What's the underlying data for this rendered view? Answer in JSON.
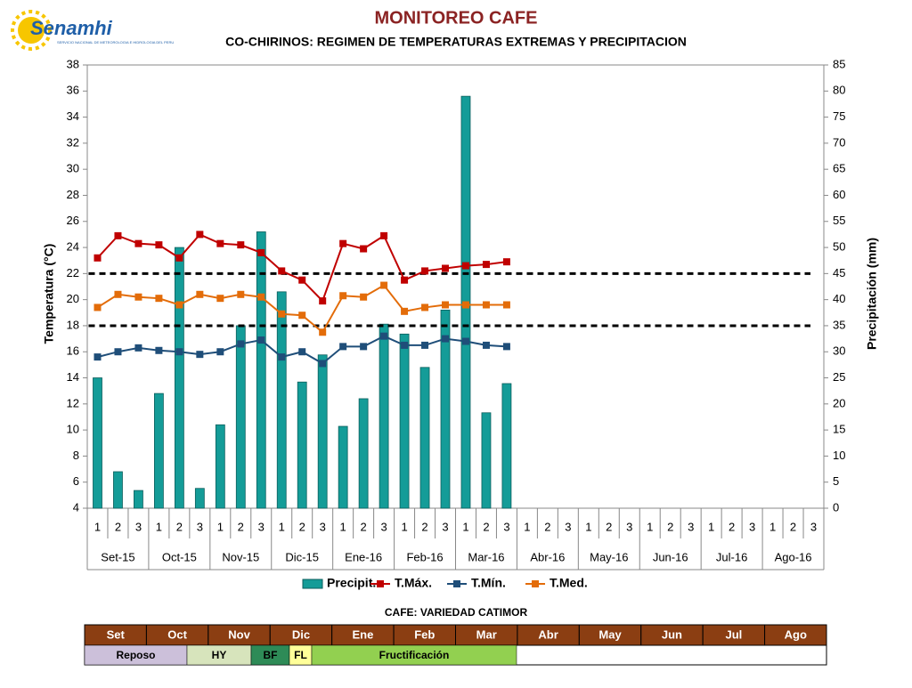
{
  "header": {
    "logo": "Senamhi",
    "logo_subtitle": "SERVICIO NACIONAL DE METEOROLOGIA E HIDROLOGIA DEL PERU"
  },
  "chart_data": {
    "type": "combo",
    "title": "MONITOREO CAFE",
    "subtitle": "CO-CHIRINOS: REGIMEN DE TEMPERATURAS EXTREMAS Y PRECIPITACION",
    "ylabel": "Temperatura (°C)",
    "y2label": "Precipitación (mm)",
    "categories": [
      "1",
      "2",
      "3",
      "1",
      "2",
      "3",
      "1",
      "2",
      "3",
      "1",
      "2",
      "3",
      "1",
      "2",
      "3",
      "1",
      "2",
      "3",
      "1",
      "2",
      "3",
      "1",
      "2",
      "3",
      "1",
      "2",
      "3",
      "1",
      "2",
      "3",
      "1",
      "2",
      "3",
      "1",
      "2",
      "3"
    ],
    "groups": [
      "Set-15",
      "Oct-15",
      "Nov-15",
      "Dic-15",
      "Ene-16",
      "Feb-16",
      "Mar-16",
      "Abr-16",
      "May-16",
      "Jun-16",
      "Jul-16",
      "Ago-16"
    ],
    "ylim": [
      4,
      38
    ],
    "yticks": [
      4,
      6,
      8,
      10,
      12,
      14,
      16,
      18,
      20,
      22,
      24,
      26,
      28,
      30,
      32,
      34,
      36,
      38
    ],
    "y2lim": [
      0,
      85
    ],
    "y2ticks": [
      0,
      5,
      10,
      15,
      20,
      25,
      30,
      35,
      40,
      45,
      50,
      55,
      60,
      65,
      70,
      75,
      80,
      85
    ],
    "reference_lines": [
      22,
      18
    ],
    "series": [
      {
        "name": "Precipit.",
        "kind": "bar",
        "axis": "y2",
        "color": "#149c98",
        "values": [
          25,
          7,
          3.4,
          22,
          50,
          3.8,
          16,
          35,
          53,
          41.5,
          24.2,
          29.4,
          15.7,
          21,
          35.3,
          33.4,
          27,
          38,
          79,
          18.3,
          23.9,
          null,
          null,
          null,
          null,
          null,
          null,
          null,
          null,
          null,
          null,
          null,
          null,
          null,
          null,
          null
        ]
      },
      {
        "name": "T.Máx.",
        "kind": "line",
        "color": "#c00000",
        "values": [
          23.2,
          24.9,
          24.3,
          24.2,
          23.2,
          25.0,
          24.3,
          24.2,
          23.6,
          22.2,
          21.5,
          19.9,
          24.3,
          23.9,
          24.9,
          21.5,
          22.2,
          22.4,
          22.6,
          22.7,
          22.9,
          null,
          null,
          null,
          null,
          null,
          null,
          null,
          null,
          null,
          null,
          null,
          null,
          null,
          null,
          null
        ]
      },
      {
        "name": "T.Mín.",
        "kind": "line",
        "color": "#1f4e79",
        "values": [
          15.6,
          16.0,
          16.3,
          16.1,
          16.0,
          15.8,
          16.0,
          16.6,
          16.9,
          15.6,
          16.0,
          15.1,
          16.4,
          16.4,
          17.2,
          16.5,
          16.5,
          17.0,
          16.8,
          16.5,
          16.4,
          null,
          null,
          null,
          null,
          null,
          null,
          null,
          null,
          null,
          null,
          null,
          null,
          null,
          null,
          null
        ]
      },
      {
        "name": "T.Med.",
        "kind": "line",
        "color": "#e36c09",
        "values": [
          19.4,
          20.4,
          20.2,
          20.1,
          19.6,
          20.4,
          20.1,
          20.4,
          20.2,
          18.9,
          18.8,
          17.5,
          20.3,
          20.2,
          21.1,
          19.1,
          19.4,
          19.6,
          19.6,
          19.6,
          19.6,
          null,
          null,
          null,
          null,
          null,
          null,
          null,
          null,
          null,
          null,
          null,
          null,
          null,
          null,
          null
        ]
      }
    ]
  },
  "phenology": {
    "title": "CAFE: VARIEDAD CATIMOR",
    "months": [
      "Set",
      "Oct",
      "Nov",
      "Dic",
      "Ene",
      "Feb",
      "Mar",
      "Abr",
      "May",
      "Jun",
      "Jul",
      "Ago"
    ],
    "stages": [
      "Reposo",
      "HY",
      "BF",
      "FL",
      "Fructificación"
    ]
  }
}
